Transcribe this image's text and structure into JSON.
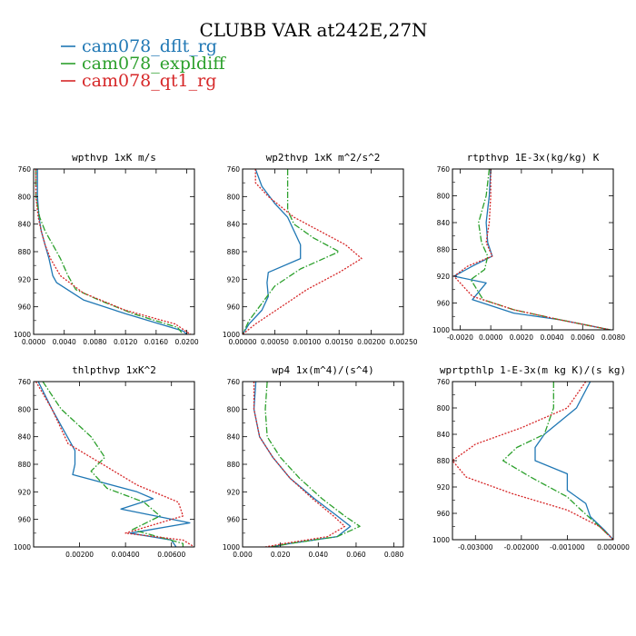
{
  "title": "CLUBB VAR at242E,27N",
  "legend": [
    {
      "label": "cam078_dflt_rg",
      "color": "#1f77b4",
      "dash": "solid"
    },
    {
      "label": "cam078_expldiff",
      "color": "#2ca02c",
      "dash": "dashdot"
    },
    {
      "label": "cam078_qt1_rg",
      "color": "#d62728",
      "dash": "dotted"
    }
  ],
  "chart_data": [
    {
      "type": "line",
      "title": "wpthvp  1xK m/s",
      "xlim": [
        0,
        0.021
      ],
      "ylim": [
        760,
        1000
      ],
      "xticks": [
        0,
        0.004,
        0.008,
        0.012,
        0.016,
        0.02
      ],
      "xtick_labels": [
        "0.0000",
        "0.0040",
        "0.0080",
        "0.0120",
        "0.0160",
        "0.0200"
      ],
      "yticks": [
        760,
        800,
        840,
        880,
        920,
        960,
        1000
      ],
      "ytick_labels": [
        "760",
        "800",
        "840",
        "880",
        "920",
        "960",
        "1000"
      ],
      "series": [
        {
          "name": "cam078_dflt_rg",
          "x": [
            0.0005,
            0.0005,
            0.0007,
            0.001,
            0.0015,
            0.002,
            0.0025,
            0.003,
            0.0065,
            0.012,
            0.0195,
            0.02
          ],
          "y": [
            760,
            800,
            830,
            850,
            870,
            890,
            915,
            925,
            950,
            970,
            995,
            1000
          ]
        },
        {
          "name": "cam078_expldiff",
          "x": [
            0.0003,
            0.0003,
            0.0008,
            0.0015,
            0.0025,
            0.0035,
            0.0045,
            0.0055,
            0.0085,
            0.013,
            0.0188,
            0.0195
          ],
          "y": [
            760,
            800,
            830,
            850,
            870,
            890,
            915,
            935,
            950,
            970,
            990,
            1000
          ]
        },
        {
          "name": "cam078_qt1_rg",
          "x": [
            0.0003,
            0.0003,
            0.0006,
            0.001,
            0.0015,
            0.0022,
            0.0035,
            0.0065,
            0.012,
            0.0185,
            0.0205
          ],
          "y": [
            760,
            800,
            830,
            850,
            870,
            890,
            915,
            940,
            965,
            985,
            1000
          ]
        }
      ]
    },
    {
      "type": "line",
      "title": "wp2thvp  1xK m^2/s^2",
      "xlim": [
        0,
        0.0025
      ],
      "ylim": [
        760,
        1000
      ],
      "xticks": [
        0,
        0.0005,
        0.001,
        0.0015,
        0.002,
        0.0025
      ],
      "xtick_labels": [
        "0.00000",
        "0.00050",
        "0.00100",
        "0.00150",
        "0.00200",
        "0.00250"
      ],
      "yticks": [
        760,
        800,
        840,
        880,
        920,
        960,
        1000
      ],
      "ytick_labels": [
        "760",
        "800",
        "840",
        "880",
        "920",
        "960",
        "1000"
      ],
      "series": [
        {
          "name": "cam078_dflt_rg",
          "x": [
            0.0002,
            0.0003,
            0.0005,
            0.0007,
            0.0009,
            0.0009,
            0.0004,
            0.00038,
            0.0004,
            0.0003,
            0.0001,
            0.0
          ],
          "y": [
            760,
            785,
            810,
            830,
            870,
            890,
            910,
            925,
            945,
            965,
            985,
            1000
          ]
        },
        {
          "name": "cam078_expldiff",
          "x": [
            0.0007,
            0.0007,
            0.0007,
            0.0008,
            0.0011,
            0.0015,
            0.0009,
            0.0005,
            0.0003,
            0.0001,
            0.0
          ],
          "y": [
            760,
            800,
            820,
            840,
            860,
            880,
            905,
            930,
            955,
            980,
            1000
          ]
        },
        {
          "name": "cam078_qt1_rg",
          "x": [
            0.0002,
            0.0002,
            0.0004,
            0.0008,
            0.0012,
            0.0016,
            0.00185,
            0.0015,
            0.001,
            0.0006,
            0.0002,
            0.0
          ],
          "y": [
            760,
            780,
            800,
            830,
            850,
            870,
            890,
            910,
            935,
            960,
            985,
            1000
          ]
        }
      ]
    },
    {
      "type": "line",
      "title": "rtpthvp  1E-3x(kg/kg) K",
      "xlim": [
        -0.0025,
        0.008
      ],
      "ylim": [
        760,
        1000
      ],
      "xticks": [
        -0.002,
        0.0,
        0.002,
        0.004,
        0.006,
        0.008
      ],
      "xtick_labels": [
        "-0.0020",
        "0.0000",
        "0.0020",
        "0.0040",
        "0.0060",
        "0.0080"
      ],
      "yticks": [
        760,
        800,
        840,
        880,
        920,
        960,
        1000
      ],
      "ytick_labels": [
        "760",
        "800",
        "840",
        "880",
        "920",
        "960",
        "1000"
      ],
      "series": [
        {
          "name": "cam078_dflt_rg",
          "x": [
            0.0,
            -0.0001,
            -0.0003,
            -0.0002,
            0.0001,
            -0.0012,
            -0.0024,
            -0.0003,
            -0.0012,
            0.0015,
            0.0045,
            0.0078
          ],
          "y": [
            760,
            800,
            840,
            870,
            890,
            905,
            920,
            930,
            955,
            975,
            985,
            1000
          ]
        },
        {
          "name": "cam078_expldiff",
          "x": [
            -0.0001,
            -0.0003,
            -0.0008,
            -0.0006,
            -0.0002,
            -0.0004,
            -0.0013,
            -0.0005,
            0.0015,
            0.0045,
            0.0078
          ],
          "y": [
            760,
            800,
            840,
            870,
            890,
            910,
            925,
            955,
            970,
            985,
            1000
          ]
        },
        {
          "name": "cam078_qt1_rg",
          "x": [
            0.0,
            0.0,
            -0.0001,
            -0.0003,
            0.0001,
            -0.0015,
            -0.0024,
            -0.0012,
            0.0015,
            0.0045,
            0.0078
          ],
          "y": [
            760,
            800,
            840,
            870,
            890,
            905,
            920,
            950,
            970,
            985,
            1000
          ]
        }
      ]
    },
    {
      "type": "line",
      "title": "thlpthvp  1xK^2",
      "xlim": [
        0,
        0.007
      ],
      "ylim": [
        760,
        1000
      ],
      "xticks": [
        0.002,
        0.004,
        0.006
      ],
      "xtick_labels": [
        "0.00200",
        "0.00400",
        "0.00600"
      ],
      "yticks": [
        760,
        800,
        840,
        880,
        920,
        960,
        1000
      ],
      "ytick_labels": [
        "760",
        "800",
        "840",
        "880",
        "920",
        "960",
        "1000"
      ],
      "series": [
        {
          "name": "cam078_dflt_rg",
          "x": [
            0.0002,
            0.0008,
            0.0018,
            0.0018,
            0.0017,
            0.0045,
            0.0052,
            0.0038,
            0.0068,
            0.0042,
            0.006,
            0.0062
          ],
          "y": [
            760,
            800,
            860,
            880,
            895,
            920,
            930,
            945,
            965,
            980,
            990,
            1000
          ]
        },
        {
          "name": "cam078_expldiff",
          "x": [
            0.0004,
            0.0012,
            0.0025,
            0.0031,
            0.0025,
            0.0032,
            0.0048,
            0.0055,
            0.0043,
            0.0065,
            0.0065
          ],
          "y": [
            760,
            800,
            840,
            870,
            890,
            915,
            935,
            955,
            975,
            995,
            1000
          ]
        },
        {
          "name": "cam078_qt1_rg",
          "x": [
            0.0001,
            0.0008,
            0.0015,
            0.003,
            0.0045,
            0.0063,
            0.0065,
            0.004,
            0.0065,
            0.007
          ],
          "y": [
            760,
            800,
            850,
            880,
            910,
            935,
            955,
            980,
            990,
            1000
          ]
        }
      ]
    },
    {
      "type": "line",
      "title": "wp4  1x(m^4)/(s^4)",
      "xlim": [
        0,
        0.085
      ],
      "ylim": [
        760,
        1000
      ],
      "xticks": [
        0,
        0.02,
        0.04,
        0.06,
        0.08
      ],
      "xtick_labels": [
        "0.000",
        "0.020",
        "0.040",
        "0.060",
        "0.080"
      ],
      "yticks": [
        760,
        800,
        840,
        880,
        920,
        960,
        1000
      ],
      "ytick_labels": [
        "760",
        "800",
        "840",
        "880",
        "920",
        "960",
        "1000"
      ],
      "series": [
        {
          "name": "cam078_dflt_rg",
          "x": [
            0.007,
            0.006,
            0.009,
            0.016,
            0.025,
            0.038,
            0.05,
            0.057,
            0.05,
            0.025,
            0.015
          ],
          "y": [
            760,
            800,
            840,
            870,
            900,
            930,
            955,
            970,
            985,
            995,
            1000
          ]
        },
        {
          "name": "cam078_expldiff",
          "x": [
            0.013,
            0.012,
            0.013,
            0.02,
            0.03,
            0.042,
            0.054,
            0.062,
            0.05,
            0.025,
            0.015
          ],
          "y": [
            760,
            800,
            840,
            870,
            900,
            930,
            955,
            970,
            985,
            995,
            1000
          ]
        },
        {
          "name": "cam078_qt1_rg",
          "x": [
            0.006,
            0.006,
            0.009,
            0.016,
            0.025,
            0.037,
            0.048,
            0.054,
            0.045,
            0.022,
            0.012
          ],
          "y": [
            760,
            800,
            840,
            870,
            900,
            930,
            955,
            970,
            985,
            995,
            1000
          ]
        }
      ]
    },
    {
      "type": "line",
      "title": "wprtpthlp  1-E-3x(m kg K)/(s kg)",
      "xlim": [
        -0.0035,
        0.0
      ],
      "ylim": [
        760,
        1000
      ],
      "xticks": [
        -0.003,
        -0.002,
        -0.001,
        0.0
      ],
      "xtick_labels": [
        "-0.003000",
        "-0.002000",
        "-0.001000",
        "0.000000"
      ],
      "yticks": [
        760,
        800,
        840,
        880,
        920,
        960,
        1000
      ],
      "ytick_labels": [
        "760",
        "800",
        "840",
        "880",
        "920",
        "960",
        "1000"
      ],
      "series": [
        {
          "name": "cam078_dflt_rg",
          "x": [
            -0.0005,
            -0.0008,
            -0.0015,
            -0.0017,
            -0.0017,
            -0.001,
            -0.001,
            -0.0006,
            -0.0005,
            -0.0002,
            0.0
          ],
          "y": [
            760,
            800,
            840,
            860,
            880,
            900,
            925,
            945,
            965,
            985,
            1000
          ]
        },
        {
          "name": "cam078_expldiff",
          "x": [
            -0.0013,
            -0.0013,
            -0.0015,
            -0.0021,
            -0.0024,
            -0.0018,
            -0.001,
            -0.0007,
            -0.0003,
            0.0
          ],
          "y": [
            760,
            800,
            840,
            860,
            880,
            905,
            935,
            955,
            980,
            1000
          ]
        },
        {
          "name": "cam078_qt1_rg",
          "x": [
            -0.0006,
            -0.001,
            -0.002,
            -0.003,
            -0.0035,
            -0.0032,
            -0.0022,
            -0.001,
            -0.0003,
            0.0
          ],
          "y": [
            760,
            800,
            830,
            855,
            880,
            905,
            930,
            955,
            980,
            1000
          ]
        }
      ]
    }
  ]
}
